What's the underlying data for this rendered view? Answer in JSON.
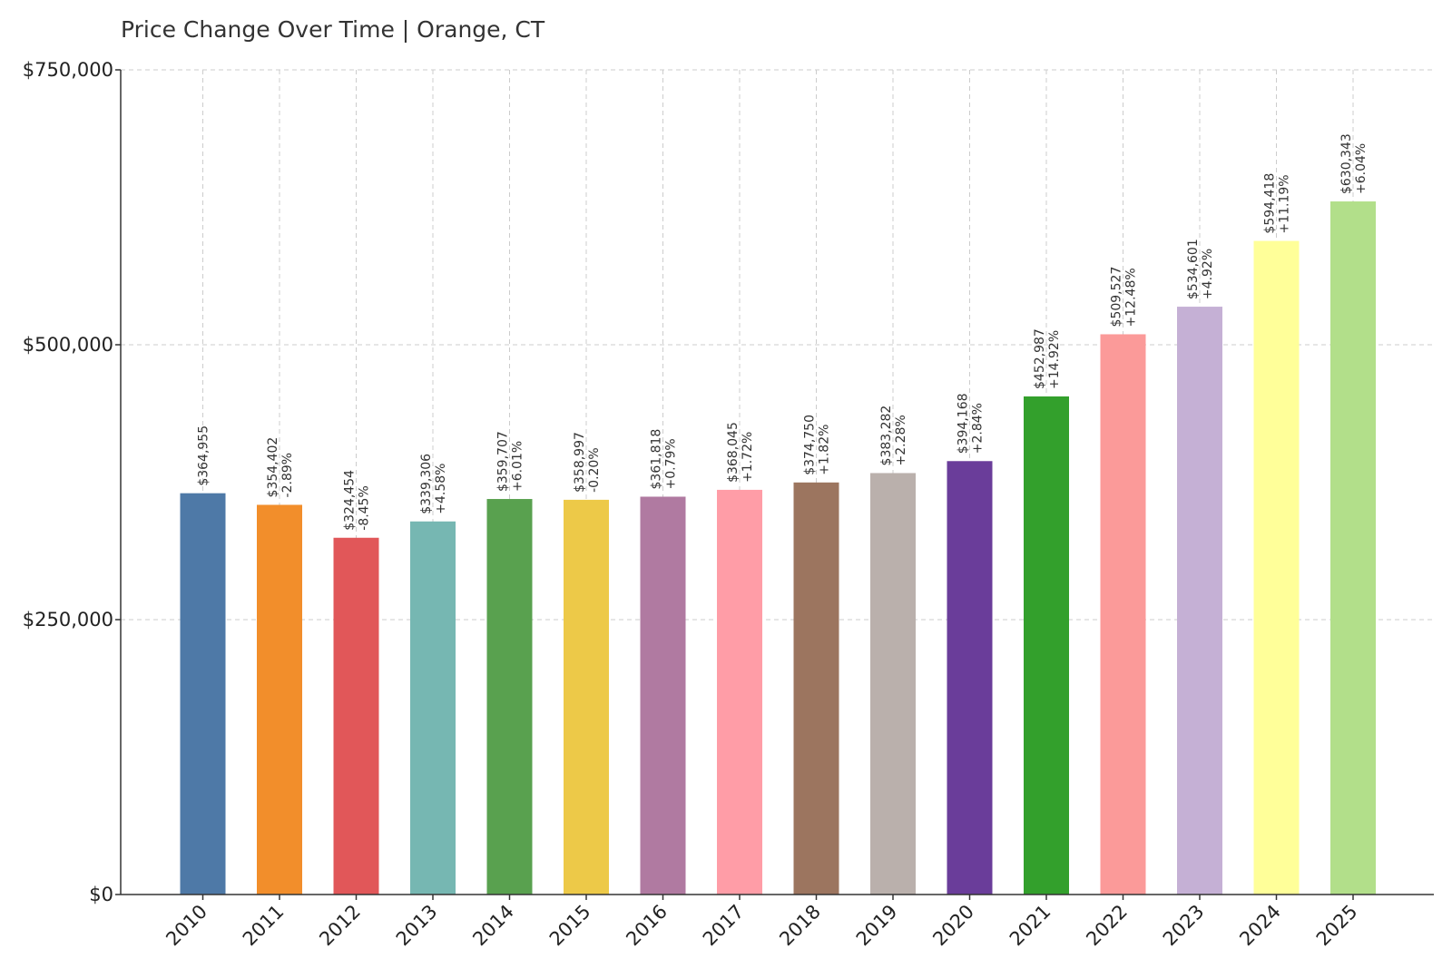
{
  "chart_data": {
    "type": "bar",
    "title": "Price Change Over Time | Orange, CT",
    "xlabel": "",
    "ylabel": "",
    "ylim": [
      0,
      750000
    ],
    "yticks": [
      0,
      250000,
      500000,
      750000
    ],
    "ytick_labels": [
      "$0",
      "$250,000",
      "$500,000",
      "$750,000"
    ],
    "grid": true,
    "categories": [
      "2010",
      "2011",
      "2012",
      "2013",
      "2014",
      "2015",
      "2016",
      "2017",
      "2018",
      "2019",
      "2020",
      "2021",
      "2022",
      "2023",
      "2024",
      "2025"
    ],
    "values": [
      364955,
      354402,
      324454,
      339306,
      359707,
      358997,
      361818,
      368045,
      374750,
      383282,
      394168,
      452987,
      509527,
      534601,
      594418,
      630343
    ],
    "value_labels": [
      "$364,955",
      "$354,402",
      "$324,454",
      "$339,306",
      "$359,707",
      "$358,997",
      "$361,818",
      "$368,045",
      "$374,750",
      "$383,282",
      "$394,168",
      "$452,987",
      "$509,527",
      "$534,601",
      "$594,418",
      "$630,343"
    ],
    "change_labels": [
      "",
      "-2.89%",
      "-8.45%",
      "+4.58%",
      "+6.01%",
      "-0.20%",
      "+0.79%",
      "+1.72%",
      "+1.82%",
      "+2.28%",
      "+2.84%",
      "+14.92%",
      "+12.48%",
      "+4.92%",
      "+11.19%",
      "+6.04%"
    ],
    "colors": [
      "#4e79a7",
      "#f28e2b",
      "#e15759",
      "#76b7b2",
      "#59a14f",
      "#edc948",
      "#b07aa1",
      "#ff9da7",
      "#9c755f",
      "#bab0ac",
      "#6a3d9a",
      "#33a02c",
      "#fb9a99",
      "#c5b0d5",
      "#ffff99",
      "#b2df8a"
    ]
  }
}
